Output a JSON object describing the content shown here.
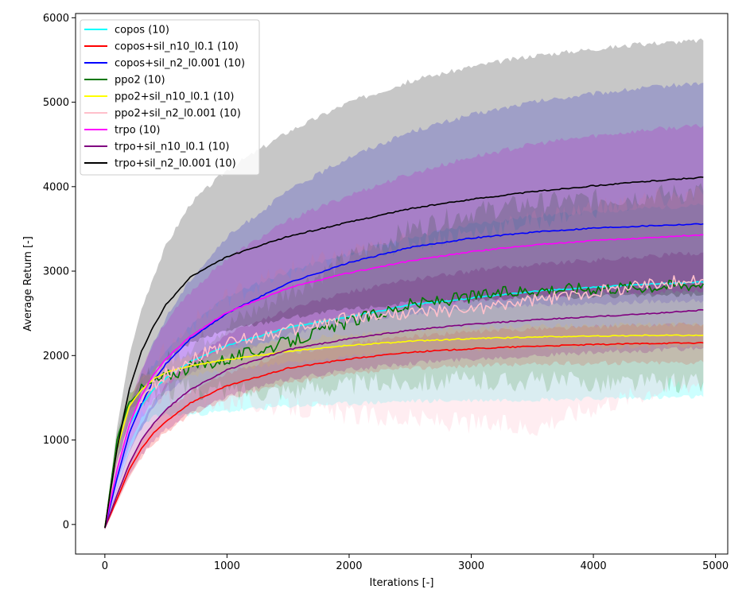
{
  "chart_data": {
    "type": "line",
    "xlabel": "Iterations [-]",
    "ylabel": "Average Return [-]",
    "xlim": [
      -240,
      5100
    ],
    "ylim": [
      -350,
      6050
    ],
    "xticks": [
      0,
      1000,
      2000,
      3000,
      4000,
      5000
    ],
    "yticks": [
      0,
      1000,
      2000,
      3000,
      4000,
      5000,
      6000
    ],
    "grid": false,
    "legend_position": "upper-left",
    "x": [
      0,
      100,
      200,
      300,
      400,
      500,
      700,
      1000,
      1500,
      2000,
      2500,
      3000,
      3500,
      4000,
      4500,
      4900
    ],
    "series": [
      {
        "name": "copos (10)",
        "color": "#00ffff",
        "noisy": false,
        "values": [
          -40,
          700,
          1180,
          1410,
          1600,
          1730,
          1930,
          2120,
          2330,
          2460,
          2600,
          2680,
          2760,
          2810,
          2850,
          2870
        ],
        "band_lower": [
          -70,
          500,
          900,
          1150,
          1270,
          1300,
          1300,
          1340,
          1400,
          1430,
          1460,
          1470,
          1480,
          1490,
          1500,
          1510
        ],
        "band_upper": [
          0,
          900,
          1450,
          1700,
          1900,
          2050,
          2350,
          2700,
          3000,
          3200,
          3400,
          3550,
          3650,
          3700,
          3750,
          3780
        ]
      },
      {
        "name": "copos+sil_n10_l0.1 (10)",
        "color": "#ff0000",
        "noisy": false,
        "values": [
          -40,
          300,
          650,
          900,
          1080,
          1220,
          1440,
          1640,
          1850,
          1960,
          2040,
          2080,
          2110,
          2130,
          2145,
          2150
        ],
        "band_lower": [
          -60,
          250,
          560,
          800,
          960,
          1090,
          1300,
          1490,
          1680,
          1780,
          1850,
          1880,
          1900,
          1910,
          1920,
          1920
        ],
        "band_upper": [
          -20,
          360,
          740,
          1000,
          1200,
          1350,
          1580,
          1790,
          2020,
          2140,
          2230,
          2280,
          2320,
          2340,
          2360,
          2370
        ]
      },
      {
        "name": "copos+sil_n2_l0.001 (10)",
        "color": "#0000ff",
        "noisy": false,
        "values": [
          -40,
          550,
          1080,
          1430,
          1700,
          1900,
          2200,
          2500,
          2860,
          3100,
          3280,
          3390,
          3460,
          3510,
          3540,
          3560
        ],
        "band_lower": [
          -60,
          420,
          850,
          1150,
          1380,
          1550,
          1800,
          2000,
          2250,
          2400,
          2500,
          2560,
          2600,
          2620,
          2640,
          2650
        ],
        "band_upper": [
          -20,
          700,
          1350,
          1800,
          2150,
          2450,
          2900,
          3400,
          3950,
          4350,
          4650,
          4850,
          5000,
          5100,
          5180,
          5230
        ]
      },
      {
        "name": "ppo2 (10)",
        "color": "#007700",
        "noisy": true,
        "values": [
          -40,
          1000,
          1450,
          1600,
          1680,
          1760,
          1860,
          1960,
          2160,
          2400,
          2600,
          2700,
          2780,
          2800,
          2820,
          2850
        ],
        "band_lower": [
          -60,
          850,
          1350,
          1500,
          1560,
          1600,
          1600,
          1580,
          1600,
          1650,
          1700,
          1700,
          1700,
          1680,
          1680,
          1680
        ],
        "band_upper": [
          -20,
          1100,
          1550,
          1700,
          1800,
          1920,
          2120,
          2350,
          2750,
          3150,
          3500,
          3700,
          3800,
          3850,
          3900,
          3950
        ]
      },
      {
        "name": "ppo2+sil_n10_l0.1 (10)",
        "color": "#ffff00",
        "noisy": false,
        "values": [
          -40,
          900,
          1400,
          1600,
          1720,
          1800,
          1880,
          1950,
          2050,
          2120,
          2170,
          2200,
          2220,
          2230,
          2240,
          2240
        ],
        "band_lower": [
          -60,
          780,
          1280,
          1480,
          1600,
          1680,
          1760,
          1830,
          1920,
          1990,
          2040,
          2070,
          2090,
          2100,
          2110,
          2110
        ],
        "band_upper": [
          -20,
          1020,
          1520,
          1720,
          1840,
          1920,
          2000,
          2070,
          2180,
          2250,
          2300,
          2330,
          2350,
          2360,
          2370,
          2370
        ]
      },
      {
        "name": "ppo2+sil_n2_l0.001 (10)",
        "color": "#ffc0cb",
        "noisy": true,
        "values": [
          -40,
          700,
          1200,
          1480,
          1650,
          1780,
          1950,
          2150,
          2300,
          2450,
          2500,
          2550,
          2650,
          2750,
          2850,
          2900
        ],
        "band_lower": [
          -60,
          550,
          1000,
          1250,
          1400,
          1480,
          1500,
          1450,
          1400,
          1300,
          1250,
          1200,
          1150,
          1400,
          1600,
          1700
        ],
        "band_upper": [
          -20,
          850,
          1400,
          1700,
          1900,
          2050,
          2350,
          2700,
          3000,
          3200,
          3350,
          3450,
          3600,
          3750,
          3850,
          3900
        ]
      },
      {
        "name": "trpo (10)",
        "color": "#ff00ff",
        "noisy": false,
        "values": [
          -40,
          650,
          1180,
          1530,
          1780,
          1960,
          2230,
          2510,
          2800,
          2980,
          3120,
          3230,
          3310,
          3360,
          3400,
          3430
        ],
        "band_lower": [
          -60,
          500,
          950,
          1250,
          1480,
          1640,
          1880,
          2100,
          2350,
          2480,
          2580,
          2650,
          2700,
          2730,
          2750,
          2760
        ],
        "band_upper": [
          -20,
          800,
          1420,
          1850,
          2150,
          2400,
          2750,
          3150,
          3600,
          3900,
          4150,
          4350,
          4500,
          4600,
          4680,
          4720
        ]
      },
      {
        "name": "trpo+sil_n10_l0.1 (10)",
        "color": "#800080",
        "noisy": false,
        "values": [
          -40,
          350,
          720,
          1000,
          1200,
          1360,
          1600,
          1830,
          2070,
          2200,
          2300,
          2370,
          2420,
          2460,
          2500,
          2540
        ],
        "band_lower": [
          -60,
          280,
          580,
          820,
          1000,
          1130,
          1330,
          1520,
          1720,
          1830,
          1910,
          1960,
          2000,
          2030,
          2060,
          2090
        ],
        "band_upper": [
          -20,
          430,
          870,
          1200,
          1450,
          1650,
          1950,
          2250,
          2550,
          2750,
          2900,
          3000,
          3080,
          3130,
          3180,
          3220
        ]
      },
      {
        "name": "trpo+sil_n2_l0.001 (10)",
        "color": "#000000",
        "noisy": false,
        "values": [
          -40,
          900,
          1600,
          2050,
          2350,
          2600,
          2930,
          3170,
          3410,
          3580,
          3740,
          3850,
          3940,
          4010,
          4070,
          4110
        ],
        "band_lower": [
          -60,
          650,
          1200,
          1550,
          1780,
          1950,
          2150,
          2300,
          2450,
          2550,
          2620,
          2660,
          2690,
          2700,
          2710,
          2720
        ],
        "band_upper": [
          -20,
          1150,
          2000,
          2550,
          2950,
          3300,
          3800,
          4200,
          4650,
          5000,
          5250,
          5420,
          5550,
          5630,
          5700,
          5730
        ]
      }
    ]
  }
}
